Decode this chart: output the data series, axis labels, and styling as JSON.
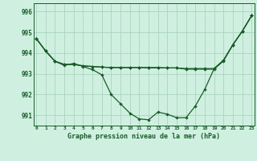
{
  "title": "Graphe pression niveau de la mer (hPa)",
  "background_color": "#cff0e0",
  "grid_color": "#aad4be",
  "line_color": "#1a5c2a",
  "xlim": [
    -0.3,
    23.3
  ],
  "ylim": [
    990.5,
    996.4
  ],
  "yticks": [
    991,
    992,
    993,
    994,
    995,
    996
  ],
  "xticks": [
    0,
    1,
    2,
    3,
    4,
    5,
    6,
    7,
    8,
    9,
    10,
    11,
    12,
    13,
    14,
    15,
    16,
    17,
    18,
    19,
    20,
    21,
    22,
    23
  ],
  "line1": [
    994.7,
    994.1,
    993.6,
    993.4,
    993.5,
    993.35,
    993.2,
    992.95,
    992.0,
    991.55,
    991.1,
    990.82,
    990.78,
    991.15,
    991.05,
    990.88,
    990.88,
    991.45,
    992.25,
    993.25,
    993.65,
    994.4,
    995.05,
    995.8
  ],
  "line2": [
    994.7,
    994.1,
    993.6,
    993.45,
    993.45,
    993.38,
    993.35,
    993.32,
    993.3,
    993.3,
    993.3,
    993.3,
    993.3,
    993.3,
    993.28,
    993.28,
    993.25,
    993.25,
    993.25,
    993.25,
    993.65,
    994.4,
    995.05,
    995.8
  ],
  "line3": [
    994.7,
    994.1,
    993.6,
    993.45,
    993.45,
    993.38,
    993.35,
    993.32,
    993.3,
    993.3,
    993.3,
    993.3,
    993.28,
    993.28,
    993.28,
    993.28,
    993.22,
    993.22,
    993.22,
    993.22,
    993.62,
    994.4,
    995.05,
    995.8
  ],
  "figwidth": 3.2,
  "figheight": 2.0,
  "dpi": 100
}
